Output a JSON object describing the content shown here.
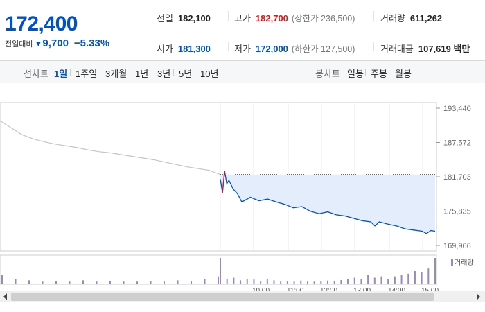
{
  "summary": {
    "current_price": "172,400",
    "change_label": "전일대비",
    "change_arrow": "▼",
    "change_value": "9,700",
    "change_percent": "−5.33%",
    "prev_close_label": "전일",
    "prev_close": "182,100",
    "high_label": "고가",
    "high": "182,700",
    "upper_limit": "(상한가 236,500)",
    "volume_label": "거래량",
    "volume": "611,262",
    "open_label": "시가",
    "open": "181,300",
    "low_label": "저가",
    "low": "172,000",
    "lower_limit": "(하한가 127,500)",
    "trade_value_label": "거래대금",
    "trade_value": "107,619 백만"
  },
  "tabs": {
    "line_title": "선차트",
    "line_periods": [
      "1일",
      "1주일",
      "3개월",
      "1년",
      "3년",
      "5년",
      "10년"
    ],
    "active": "1일",
    "candle_title": "봉차트",
    "candle_periods": [
      "일봉",
      "주봉",
      "월봉"
    ]
  },
  "colors": {
    "down": "#0051c7",
    "up": "#e11111",
    "prev_day_line": "#c4c4c4",
    "area_fill": "#e3edfb",
    "volume_bar": "#9a8ab8"
  },
  "chart_data": {
    "type": "line",
    "y_ticks": [
      "193,440",
      "187,572",
      "181,703",
      "175,835",
      "169,966"
    ],
    "ylim": [
      169966,
      193440
    ],
    "reference_price": 182100,
    "x_ticks": [
      "10:00",
      "11:00",
      "12:00",
      "13:00",
      "14:00",
      "15:00"
    ],
    "x_ticks_visible_text": [
      "10:00",
      "11:00",
      "12:00",
      "13:00",
      "14:00",
      "15:00"
    ],
    "volume_legend": "거래량",
    "series": [
      {
        "x": [
          0,
          0.05,
          0.1,
          0.15,
          0.2,
          0.25,
          0.3,
          0.35,
          0.4,
          0.45,
          0.5,
          0.55,
          0.6,
          0.65,
          0.7,
          0.75,
          0.8,
          0.85,
          0.9,
          0.95,
          1.0
        ],
        "values": [
          191300,
          190100,
          188900,
          188200,
          187700,
          187300,
          187000,
          186700,
          186300,
          186000,
          185800,
          185500,
          185200,
          184900,
          184600,
          184200,
          183800,
          183400,
          183100,
          182800,
          182100
        ]
      },
      {
        "x": [
          0,
          0.01,
          0.02,
          0.03,
          0.04,
          0.06,
          0.08,
          0.1,
          0.14,
          0.18,
          0.22,
          0.26,
          0.3,
          0.34,
          0.38,
          0.42,
          0.46,
          0.5,
          0.54,
          0.58,
          0.62,
          0.66,
          0.7,
          0.72,
          0.74,
          0.78,
          0.82,
          0.86,
          0.9,
          0.94,
          0.96,
          0.98,
          1.0
        ],
        "values": [
          181300,
          179000,
          182700,
          180500,
          181100,
          179600,
          178800,
          177400,
          178200,
          177600,
          177900,
          177400,
          177000,
          176400,
          176600,
          175800,
          175400,
          175700,
          175200,
          175000,
          174600,
          174200,
          174000,
          173300,
          174000,
          173600,
          173300,
          172800,
          172600,
          172400,
          172000,
          172500,
          172400
        ]
      }
    ],
    "volume": [
      1,
      0.2,
      0.25,
      0.15,
      0.2,
      0.18,
      0.12,
      0.2,
      0.15,
      0.1,
      0.12,
      0.1,
      0.14,
      0.1,
      0.1,
      0.12,
      0.14,
      0.12,
      0.16,
      0.2,
      0.25,
      0.2,
      0.35,
      0.25,
      0.3,
      0.2,
      0.3,
      0.35,
      0.4,
      0.5,
      0.45,
      0.6,
      1.0
    ]
  }
}
